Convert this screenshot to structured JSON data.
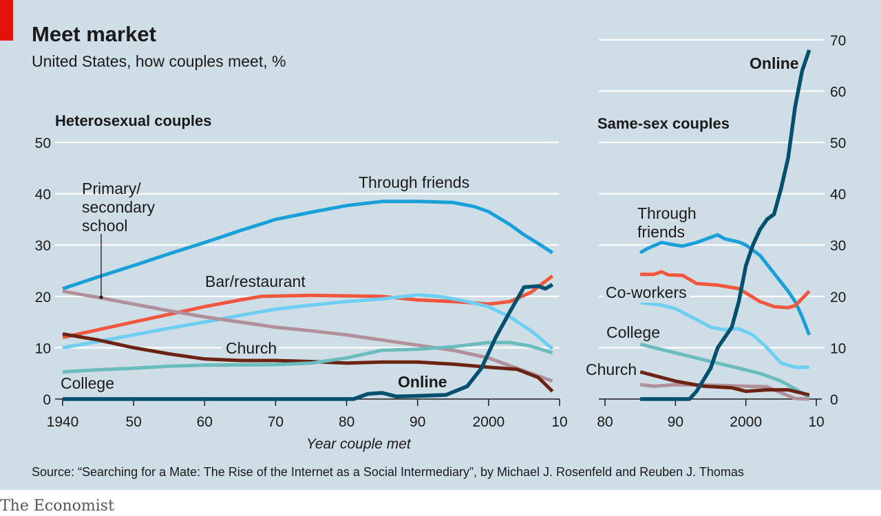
{
  "title": "Meet market",
  "subtitle": "United States, how couples meet, %",
  "source": "Source: “Searching for a Mate: The Rise of the Internet as a Social Intermediary”, by Michael J. Rosenfeld and Reuben J. Thomas",
  "brand": "The Economist",
  "colors": {
    "background": "#cfdee6",
    "accent_tag": "#e3120b",
    "through_friends": "#1aa0d8",
    "bar_restaurant": "#f0573e",
    "light_blue": "#6fcff3",
    "school": "#b0909a",
    "church": "#6b2414",
    "college": "#6bbcbc",
    "online": "#00506e"
  },
  "chart_data": [
    {
      "type": "line",
      "title": "Heterosexual couples",
      "xlabel": "Year couple met",
      "ylabel": "",
      "xlim": [
        1940,
        2010
      ],
      "ylim": [
        0,
        50
      ],
      "x_ticks": [
        "1940",
        "50",
        "60",
        "70",
        "80",
        "90",
        "2000",
        "10"
      ],
      "y_ticks": [
        "0",
        "10",
        "20",
        "30",
        "40",
        "50"
      ],
      "grid": true,
      "series": [
        {
          "name": "Through friends",
          "color": "#1aa0d8",
          "points": [
            [
              1940,
              21.5
            ],
            [
              1945,
              23.8
            ],
            [
              1950,
              26
            ],
            [
              1955,
              28.3
            ],
            [
              1960,
              30.5
            ],
            [
              1965,
              32.8
            ],
            [
              1970,
              35
            ],
            [
              1975,
              36.4
            ],
            [
              1980,
              37.7
            ],
            [
              1985,
              38.5
            ],
            [
              1990,
              38.5
            ],
            [
              1995,
              38.3
            ],
            [
              1998,
              37.5
            ],
            [
              2000,
              36.5
            ],
            [
              2003,
              34
            ],
            [
              2005,
              32
            ],
            [
              2007,
              30.3
            ],
            [
              2009,
              28.5
            ]
          ]
        },
        {
          "name": "Bar/restaurant",
          "color": "#f0573e",
          "points": [
            [
              1940,
              12
            ],
            [
              1945,
              13.5
            ],
            [
              1950,
              15
            ],
            [
              1955,
              16.5
            ],
            [
              1960,
              18
            ],
            [
              1965,
              19.3
            ],
            [
              1968,
              20
            ],
            [
              1975,
              20.2
            ],
            [
              1985,
              20
            ],
            [
              1990,
              19.3
            ],
            [
              1995,
              19
            ],
            [
              2000,
              18.5
            ],
            [
              2003,
              19
            ],
            [
              2006,
              20.8
            ],
            [
              2009,
              24
            ]
          ]
        },
        {
          "color": "#6fcff3",
          "points": [
            [
              1940,
              10
            ],
            [
              1945,
              11.2
            ],
            [
              1950,
              12.5
            ],
            [
              1955,
              13.8
            ],
            [
              1960,
              15
            ],
            [
              1965,
              16.3
            ],
            [
              1970,
              17.5
            ],
            [
              1975,
              18.3
            ],
            [
              1980,
              19
            ],
            [
              1985,
              19.5
            ],
            [
              1990,
              20.3
            ],
            [
              1993,
              20
            ],
            [
              1996,
              19.3
            ],
            [
              2000,
              18
            ],
            [
              2003,
              16
            ],
            [
              2006,
              13.3
            ],
            [
              2009,
              9.8
            ]
          ]
        },
        {
          "name": "Primary/ secondary school",
          "color": "#b0909a",
          "points": [
            [
              1940,
              21
            ],
            [
              1945,
              19.8
            ],
            [
              1950,
              18.5
            ],
            [
              1955,
              17.2
            ],
            [
              1960,
              16
            ],
            [
              1965,
              15
            ],
            [
              1970,
              14
            ],
            [
              1975,
              13.3
            ],
            [
              1980,
              12.5
            ],
            [
              1985,
              11.5
            ],
            [
              1990,
              10.5
            ],
            [
              1995,
              9.5
            ],
            [
              2000,
              8
            ],
            [
              2005,
              5.5
            ],
            [
              2009,
              3.5
            ]
          ]
        },
        {
          "name": "Church",
          "color": "#6b2414",
          "points": [
            [
              1940,
              12.7
            ],
            [
              1945,
              11.5
            ],
            [
              1950,
              10
            ],
            [
              1955,
              8.8
            ],
            [
              1960,
              7.8
            ],
            [
              1965,
              7.5
            ],
            [
              1970,
              7.5
            ],
            [
              1975,
              7.3
            ],
            [
              1980,
              7
            ],
            [
              1985,
              7.2
            ],
            [
              1990,
              7.2
            ],
            [
              1995,
              6.8
            ],
            [
              2000,
              6.2
            ],
            [
              2004,
              5.8
            ],
            [
              2007,
              4.2
            ],
            [
              2009,
              1.5
            ]
          ]
        },
        {
          "name": "College",
          "color": "#6bbcbc",
          "points": [
            [
              1940,
              5.3
            ],
            [
              1945,
              5.7
            ],
            [
              1950,
              6
            ],
            [
              1955,
              6.4
            ],
            [
              1960,
              6.6
            ],
            [
              1970,
              6.7
            ],
            [
              1975,
              7
            ],
            [
              1980,
              8
            ],
            [
              1985,
              9.5
            ],
            [
              1990,
              9.7
            ],
            [
              1995,
              10.2
            ],
            [
              2000,
              11
            ],
            [
              2003,
              11
            ],
            [
              2006,
              10.3
            ],
            [
              2009,
              9
            ]
          ]
        },
        {
          "name": "Online",
          "color": "#00506e",
          "points": [
            [
              1940,
              0
            ],
            [
              1981,
              0
            ],
            [
              1983,
              1
            ],
            [
              1985,
              1.2
            ],
            [
              1987,
              0.5
            ],
            [
              1990,
              0.6
            ],
            [
              1994,
              0.8
            ],
            [
              1997,
              2.5
            ],
            [
              1999,
              6
            ],
            [
              2001,
              12
            ],
            [
              2003,
              17
            ],
            [
              2005,
              21.8
            ],
            [
              2007,
              22
            ],
            [
              2008,
              21.5
            ],
            [
              2009,
              22.3
            ]
          ]
        }
      ]
    },
    {
      "type": "line",
      "title": "Same-sex couples",
      "xlabel": "",
      "ylabel": "",
      "xlim": [
        1980,
        2010
      ],
      "ylim": [
        0,
        70
      ],
      "x_ticks": [
        "80",
        "90",
        "2000",
        "10"
      ],
      "y_ticks": [
        "0",
        "10",
        "20",
        "30",
        "40",
        "50",
        "60",
        "70"
      ],
      "grid": true,
      "series": [
        {
          "name": "Through friends",
          "color": "#1aa0d8",
          "points": [
            [
              1985,
              28.5
            ],
            [
              1986,
              29.3
            ],
            [
              1988,
              30.5
            ],
            [
              1990,
              30
            ],
            [
              1991,
              29.8
            ],
            [
              1993,
              30.5
            ],
            [
              1995,
              31.5
            ],
            [
              1996,
              32
            ],
            [
              1997,
              31.2
            ],
            [
              1999,
              30.6
            ],
            [
              2000,
              30
            ],
            [
              2002,
              28
            ],
            [
              2004,
              24.5
            ],
            [
              2006,
              21
            ],
            [
              2007,
              19
            ],
            [
              2008,
              16
            ],
            [
              2009,
              12.5
            ]
          ]
        },
        {
          "color": "#f0573e",
          "points": [
            [
              1985,
              24.3
            ],
            [
              1987,
              24.3
            ],
            [
              1988,
              24.8
            ],
            [
              1989,
              24.2
            ],
            [
              1991,
              24.1
            ],
            [
              1993,
              22.5
            ],
            [
              1996,
              22.2
            ],
            [
              1999,
              21.5
            ],
            [
              2002,
              19
            ],
            [
              2004,
              18
            ],
            [
              2006,
              17.8
            ],
            [
              2007,
              18.2
            ],
            [
              2009,
              21
            ]
          ]
        },
        {
          "name": "Co-workers",
          "color": "#6fcff3",
          "points": [
            [
              1985,
              18.8
            ],
            [
              1988,
              18.3
            ],
            [
              1990,
              17.6
            ],
            [
              1993,
              15.5
            ],
            [
              1995,
              14
            ],
            [
              1997,
              13.5
            ],
            [
              1999,
              13.7
            ],
            [
              2001,
              12.5
            ],
            [
              2003,
              10
            ],
            [
              2005,
              7
            ],
            [
              2007,
              6.2
            ],
            [
              2009,
              6.2
            ]
          ]
        },
        {
          "name": "College",
          "color": "#6bbcbc",
          "points": [
            [
              1985,
              10.7
            ],
            [
              1987,
              10
            ],
            [
              1990,
              9
            ],
            [
              1993,
              8
            ],
            [
              1996,
              7
            ],
            [
              1999,
              6
            ],
            [
              2002,
              5
            ],
            [
              2005,
              3.5
            ],
            [
              2007,
              2
            ],
            [
              2009,
              0.3
            ]
          ]
        },
        {
          "color": "#b0909a",
          "points": [
            [
              1985,
              2.8
            ],
            [
              1987,
              2.5
            ],
            [
              1990,
              2.8
            ],
            [
              1995,
              2.7
            ],
            [
              2000,
              2.5
            ],
            [
              2003,
              2.4
            ],
            [
              2005,
              1.2
            ],
            [
              2007,
              0.1
            ],
            [
              2009,
              0
            ]
          ]
        },
        {
          "name": "Church",
          "color": "#6b2414",
          "points": [
            [
              1985,
              5.3
            ],
            [
              1990,
              3.5
            ],
            [
              1994,
              2.5
            ],
            [
              1998,
              2.2
            ],
            [
              2000,
              1.5
            ],
            [
              2003,
              1.8
            ],
            [
              2006,
              1.8
            ],
            [
              2009,
              0.8
            ]
          ]
        },
        {
          "name": "Online",
          "color": "#00506e",
          "points": [
            [
              1985,
              0
            ],
            [
              1992,
              0
            ],
            [
              1993,
              1.5
            ],
            [
              1995,
              6
            ],
            [
              1996,
              10
            ],
            [
              1998,
              14
            ],
            [
              1999,
              19
            ],
            [
              2000,
              26
            ],
            [
              2001,
              30
            ],
            [
              2002,
              33
            ],
            [
              2003,
              35
            ],
            [
              2004,
              36
            ],
            [
              2005,
              41
            ],
            [
              2006,
              47
            ],
            [
              2007,
              57
            ],
            [
              2008,
              64
            ],
            [
              2009,
              68
            ]
          ]
        }
      ]
    }
  ]
}
